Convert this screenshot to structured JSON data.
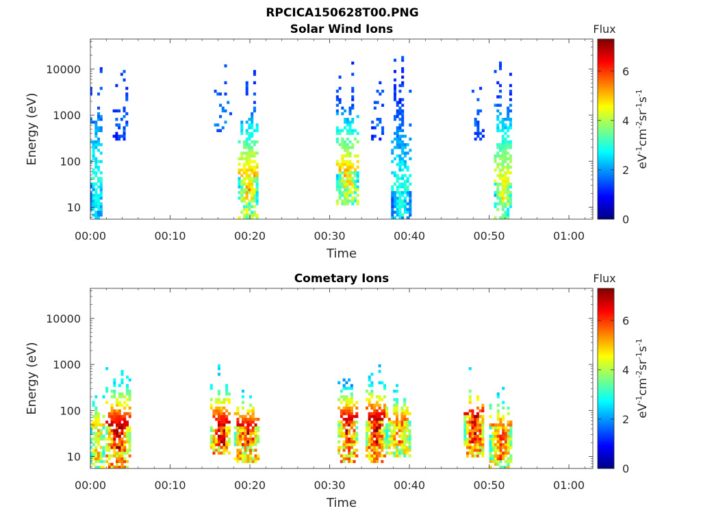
{
  "figure_title": "RPCICA150628T00.PNG",
  "colors": {
    "axis": "#262626",
    "background": "#ffffff",
    "colormap": "jet"
  },
  "chart_data": [
    {
      "type": "heatmap",
      "title": "Solar Wind Ions",
      "xlabel": "Time",
      "ylabel": "Energy (eV)",
      "x_unit": "minutes after 00:00",
      "xlim": [
        0,
        63
      ],
      "x_ticks": [
        "00:00",
        "00:10",
        "00:20",
        "00:30",
        "00:40",
        "00:50",
        "01:00"
      ],
      "y_scale": "log",
      "ylim": [
        5.5,
        45000
      ],
      "y_ticks": [
        "10",
        "100",
        "1000",
        "10000"
      ],
      "colorbar": {
        "title": "Flux",
        "label_parts": [
          "eV",
          "-1",
          "cm",
          "-2",
          "sr",
          "-1",
          "s",
          "-1"
        ],
        "range": [
          0,
          7.3
        ],
        "ticks": [
          "0",
          "2",
          "4",
          "6"
        ]
      },
      "blobs": [
        {
          "t0": -0.1,
          "t1": 1.5,
          "e_lo": 5.5,
          "e_hi": 25000,
          "core_lo": 8,
          "core_hi": 30,
          "core_flux": 3.2,
          "top_flux": 1.4,
          "density": 0.85
        },
        {
          "t0": 2.8,
          "t1": 4.7,
          "e_lo": 300,
          "e_hi": 16000,
          "core_lo": 300,
          "core_hi": 400,
          "core_flux": 1.6,
          "top_flux": 1.3,
          "density": 0.35
        },
        {
          "t0": 15.5,
          "t1": 17.5,
          "e_lo": 450,
          "e_hi": 17000,
          "core_lo": 450,
          "core_hi": 550,
          "core_flux": 1.8,
          "top_flux": 1.4,
          "density": 0.35
        },
        {
          "t0": 18.5,
          "t1": 20.8,
          "e_lo": 5.5,
          "e_hi": 17000,
          "core_lo": 12,
          "core_hi": 40,
          "core_flux": 5.2,
          "top_flux": 1.3,
          "density": 0.85
        },
        {
          "t0": 30.8,
          "t1": 33.4,
          "e_lo": 12,
          "e_hi": 16000,
          "core_lo": 25,
          "core_hi": 60,
          "core_flux": 5.0,
          "top_flux": 1.3,
          "density": 0.85
        },
        {
          "t0": 35.2,
          "t1": 36.8,
          "e_lo": 300,
          "e_hi": 12000,
          "core_lo": 300,
          "core_hi": 500,
          "core_flux": 1.8,
          "top_flux": 1.4,
          "density": 0.4
        },
        {
          "t0": 37.7,
          "t1": 40.0,
          "e_lo": 5.5,
          "e_hi": 25000,
          "core_lo": 6,
          "core_hi": 20,
          "core_flux": 3.0,
          "top_flux": 1.3,
          "density": 0.85
        },
        {
          "t0": 47.8,
          "t1": 49.2,
          "e_lo": 300,
          "e_hi": 12000,
          "core_lo": 300,
          "core_hi": 450,
          "core_flux": 1.6,
          "top_flux": 1.3,
          "density": 0.35
        },
        {
          "t0": 50.6,
          "t1": 52.8,
          "e_lo": 5.5,
          "e_hi": 35000,
          "core_lo": 10,
          "core_hi": 30,
          "core_flux": 4.6,
          "top_flux": 1.3,
          "density": 0.85
        }
      ]
    },
    {
      "type": "heatmap",
      "title": "Cometary Ions",
      "xlabel": "Time",
      "ylabel": "Energy (eV)",
      "x_unit": "minutes after 00:00",
      "xlim": [
        0,
        63
      ],
      "x_ticks": [
        "00:00",
        "00:10",
        "00:20",
        "00:30",
        "00:40",
        "00:50",
        "01:00"
      ],
      "y_scale": "log",
      "ylim": [
        5.5,
        45000
      ],
      "y_ticks": [
        "10",
        "100",
        "1000",
        "10000"
      ],
      "colorbar": {
        "title": "Flux",
        "label_parts": [
          "eV",
          "-1",
          "cm",
          "-2",
          "sr",
          "-1",
          "s",
          "-1"
        ],
        "range": [
          0,
          7.3
        ],
        "ticks": [
          "0",
          "2",
          "4",
          "6"
        ]
      },
      "blobs": [
        {
          "t0": -0.1,
          "t1": 1.6,
          "e_lo": 5.5,
          "e_hi": 300,
          "core_lo": 8,
          "core_hi": 40,
          "core_flux": 5.2,
          "top_flux": 2.8,
          "density": 0.75
        },
        {
          "t0": 1.9,
          "t1": 4.8,
          "e_lo": 5.5,
          "e_hi": 1200,
          "core_lo": 12,
          "core_hi": 45,
          "core_flux": 6.8,
          "top_flux": 2.6,
          "density": 0.85
        },
        {
          "t0": 15.0,
          "t1": 17.5,
          "e_lo": 12,
          "e_hi": 1200,
          "core_lo": 15,
          "core_hi": 45,
          "core_flux": 6.8,
          "top_flux": 2.6,
          "density": 0.9
        },
        {
          "t0": 18.0,
          "t1": 21.0,
          "e_lo": 8,
          "e_hi": 500,
          "core_lo": 15,
          "core_hi": 45,
          "core_flux": 6.5,
          "top_flux": 2.6,
          "density": 0.85
        },
        {
          "t0": 31.0,
          "t1": 33.3,
          "e_lo": 8,
          "e_hi": 1000,
          "core_lo": 18,
          "core_hi": 60,
          "core_flux": 6.8,
          "top_flux": 2.0,
          "density": 0.85
        },
        {
          "t0": 34.5,
          "t1": 36.8,
          "e_lo": 8,
          "e_hi": 1300,
          "core_lo": 15,
          "core_hi": 60,
          "core_flux": 6.9,
          "top_flux": 2.4,
          "density": 0.9
        },
        {
          "t0": 37.0,
          "t1": 40.2,
          "e_lo": 10,
          "e_hi": 400,
          "core_lo": 15,
          "core_hi": 60,
          "core_flux": 5.6,
          "top_flux": 2.6,
          "density": 0.85
        },
        {
          "t0": 46.8,
          "t1": 49.3,
          "e_lo": 10,
          "e_hi": 1200,
          "core_lo": 18,
          "core_hi": 70,
          "core_flux": 6.6,
          "top_flux": 2.6,
          "density": 0.9
        },
        {
          "t0": 50.0,
          "t1": 52.8,
          "e_lo": 5.5,
          "e_hi": 400,
          "core_lo": 8,
          "core_hi": 40,
          "core_flux": 5.8,
          "top_flux": 2.6,
          "density": 0.8
        }
      ]
    }
  ]
}
